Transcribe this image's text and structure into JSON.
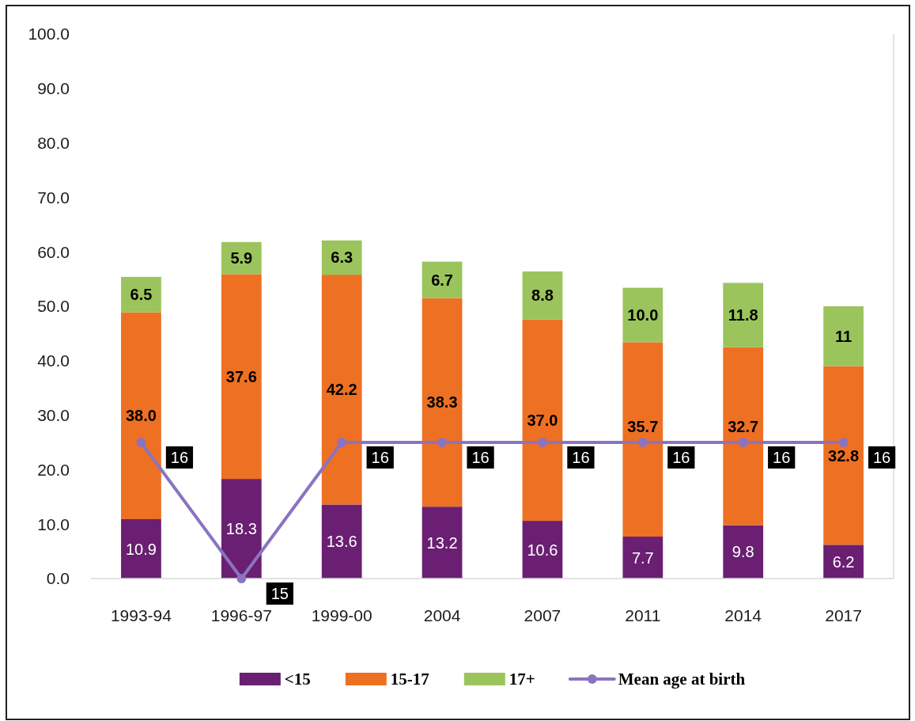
{
  "chart_data": {
    "type": "bar",
    "stacked": true,
    "categories": [
      "1993-94",
      "1996-97",
      "1999-00",
      "2004",
      "2007",
      "2011",
      "2014",
      "2017"
    ],
    "series": [
      {
        "name": "<15",
        "color": "#6a1f73",
        "values": [
          10.9,
          18.3,
          13.6,
          13.2,
          10.6,
          7.7,
          9.8,
          6.2
        ],
        "value_labels": [
          "10.9",
          "18.3",
          "13.6",
          "13.2",
          "10.6",
          "7.7",
          "9.8",
          "6.2"
        ]
      },
      {
        "name": "15-17",
        "color": "#ee7023",
        "values": [
          38.0,
          37.6,
          42.2,
          38.3,
          37.0,
          35.7,
          32.7,
          32.8
        ],
        "value_labels": [
          "38.0",
          "37.6",
          "42.2",
          "38.3",
          "37.0",
          "35.7",
          "32.7",
          "32.8"
        ]
      },
      {
        "name": "17+",
        "color": "#9bc45c",
        "values": [
          6.5,
          5.9,
          6.3,
          6.7,
          8.8,
          10.0,
          11.8,
          11
        ],
        "value_labels": [
          "6.5",
          "5.9",
          "6.3",
          "6.7",
          "8.8",
          "10.0",
          "11.8",
          "11"
        ]
      },
      {
        "name": "Mean age at birth",
        "type": "line",
        "axis": "y2",
        "color": "#8b73c1",
        "marker": "circle",
        "values": [
          16,
          15,
          16,
          16,
          16,
          16,
          16,
          16
        ],
        "value_labels": [
          "16",
          "15",
          "16",
          "16",
          "16",
          "16",
          "16",
          "16"
        ]
      }
    ],
    "ylim": [
      0,
      100
    ],
    "yticks": [
      {
        "value": 0,
        "label": "0.0"
      },
      {
        "value": 10,
        "label": "10.0"
      },
      {
        "value": 20,
        "label": "20.0"
      },
      {
        "value": 30,
        "label": "30.0"
      },
      {
        "value": 40,
        "label": "40.0"
      },
      {
        "value": 50,
        "label": "50.0"
      },
      {
        "value": 60,
        "label": "60.0"
      },
      {
        "value": 70,
        "label": "70.0"
      },
      {
        "value": 80,
        "label": "80.0"
      },
      {
        "value": 90,
        "label": "90.0"
      },
      {
        "value": 100,
        "label": "100.0"
      }
    ],
    "y2lim": [
      15,
      19
    ],
    "legend": "bottom"
  }
}
